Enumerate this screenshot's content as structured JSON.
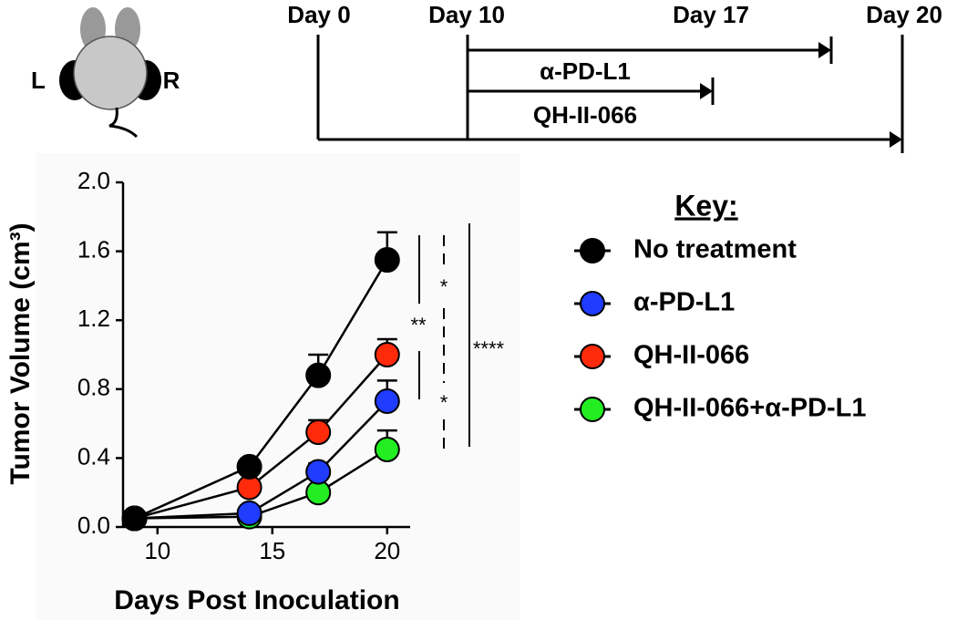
{
  "mouse": {
    "left": "L",
    "right": "R"
  },
  "timeline": {
    "days": [
      "Day 0",
      "Day 10",
      "Day 17",
      "Day 20"
    ],
    "treatments": [
      "α-PD-L1",
      "QH-II-066"
    ]
  },
  "chart_data": {
    "type": "line",
    "x_label": "Days Post Inoculation",
    "y_label": "Tumor Volume (cm³)",
    "legend_title": "Key:",
    "x": [
      9,
      14,
      17,
      20
    ],
    "xlim": [
      8.5,
      21
    ],
    "xticks": [
      10,
      15,
      20
    ],
    "ylim": [
      0,
      2
    ],
    "yticks": [
      {
        "value": 0,
        "label": "0.0"
      },
      0.4,
      0.8,
      1.2,
      1.6,
      {
        "value": 2,
        "label": "2.0"
      }
    ],
    "series": [
      {
        "name": "No treatment",
        "color": "#000000",
        "values": [
          0.05,
          0.35,
          0.88,
          1.55
        ],
        "errors": [
          null,
          0.03,
          0.12,
          0.16
        ]
      },
      {
        "name": "α-PD-L1",
        "color": "#1f3cff",
        "values": [
          0.05,
          0.08,
          0.32,
          0.73
        ],
        "errors": [
          null,
          null,
          0.05,
          0.12
        ]
      },
      {
        "name": "QH-II-066",
        "color": "#ff2a0a",
        "values": [
          0.05,
          0.23,
          0.55,
          1.0
        ],
        "errors": [
          null,
          null,
          0.07,
          0.09
        ]
      },
      {
        "name": "QH-II-066+α-PD-L1",
        "color": "#22ee22",
        "values": [
          0.05,
          0.06,
          0.2,
          0.45
        ],
        "errors": [
          null,
          null,
          null,
          0.11
        ]
      }
    ],
    "significance": [
      "*",
      "**",
      "*",
      "****"
    ]
  }
}
